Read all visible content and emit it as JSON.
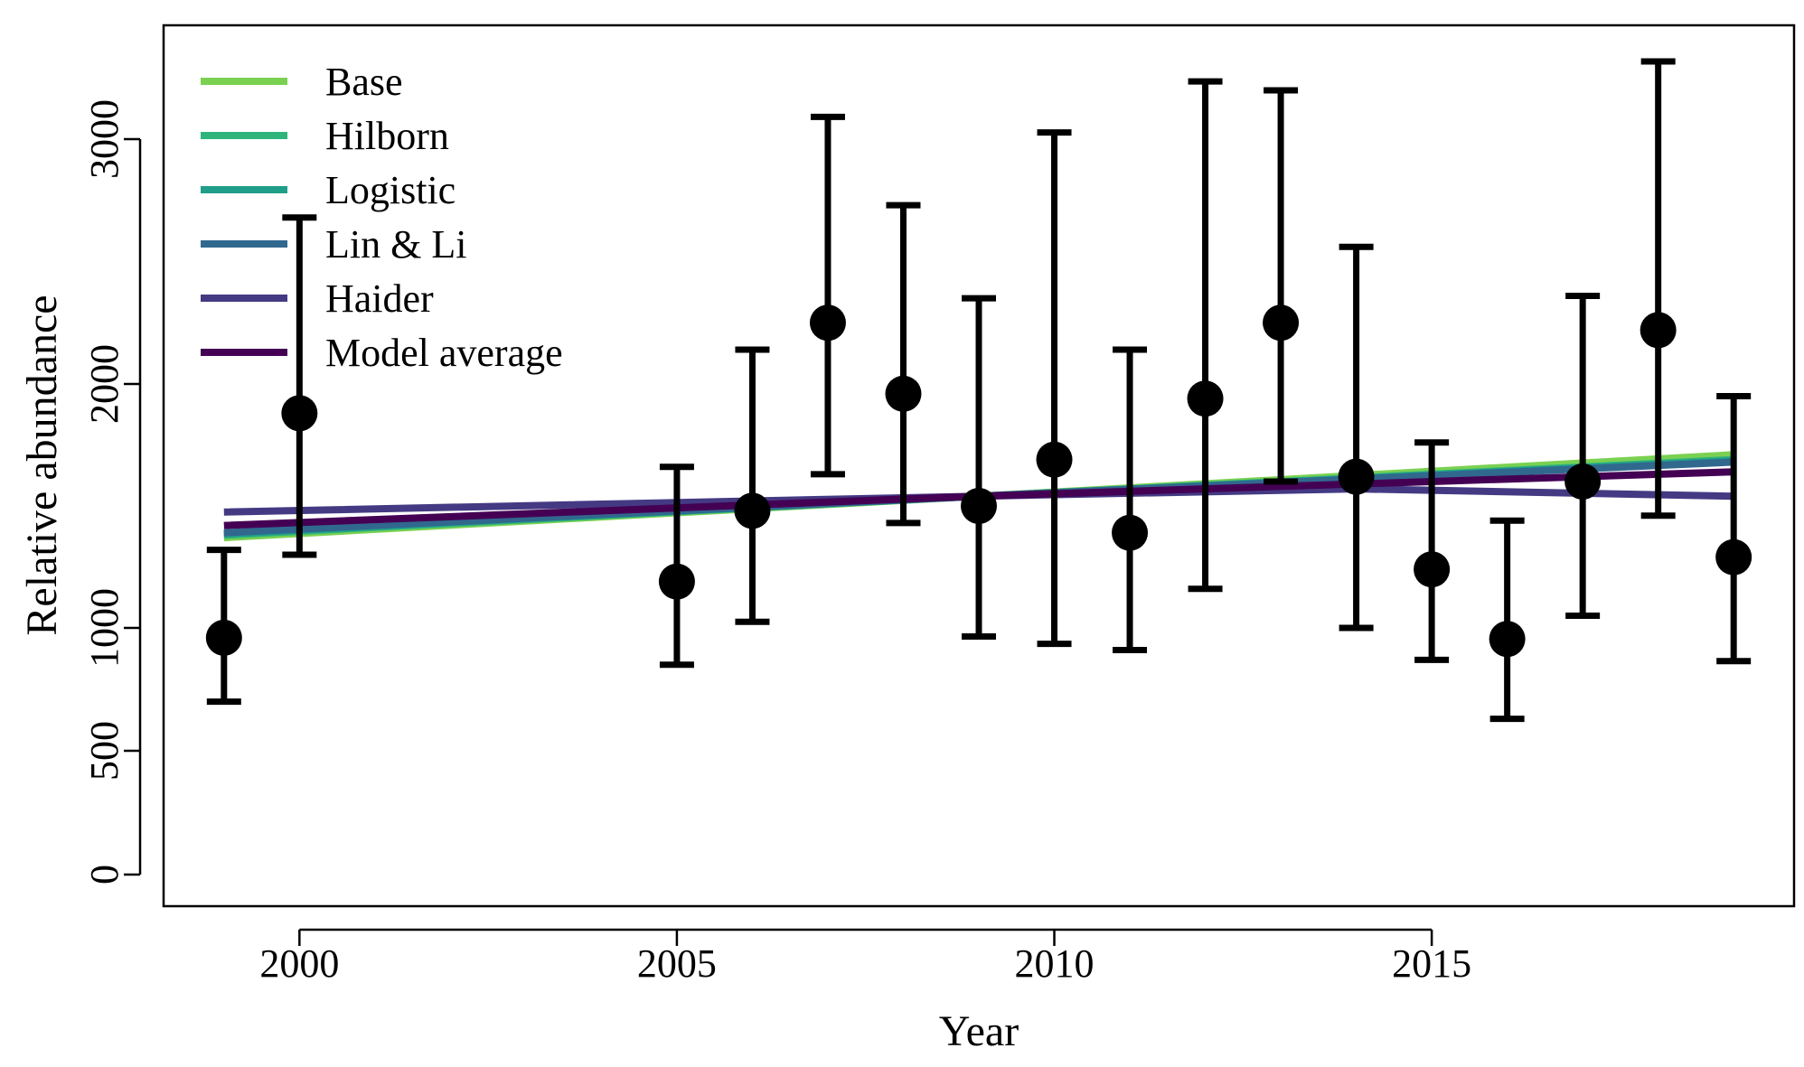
{
  "chart_data": {
    "type": "scatter",
    "xlabel": "Year",
    "ylabel": "Relative abundance",
    "xlim": [
      1998.2,
      2019.8
    ],
    "ylim": [
      -131.7,
      3512.9
    ],
    "x_ticks": [
      {
        "value": 2000,
        "label": "2000"
      },
      {
        "value": 2005,
        "label": "2005"
      },
      {
        "value": 2010,
        "label": "2010"
      },
      {
        "value": 2015,
        "label": "2015"
      }
    ],
    "y_ticks": [
      {
        "value": 0,
        "label": "0"
      },
      {
        "value": 500,
        "label": "500"
      },
      {
        "value": 1000,
        "label": "1000"
      },
      {
        "value": 2000,
        "label": "2000"
      },
      {
        "value": 3000,
        "label": "3000"
      }
    ],
    "y_scale_note": "non-linear axis: 0-1000 linear, then 1000 per equal step to 3000",
    "observations": [
      {
        "year": 1999,
        "value": 960,
        "lower": 700,
        "upper": 1320
      },
      {
        "year": 2000,
        "value": 1880,
        "lower": 1300,
        "upper": 2680
      },
      {
        "year": 2005,
        "value": 1190,
        "lower": 850,
        "upper": 1660
      },
      {
        "year": 2006,
        "value": 1480,
        "lower": 1025,
        "upper": 2140
      },
      {
        "year": 2007,
        "value": 2250,
        "lower": 1630,
        "upper": 3100
      },
      {
        "year": 2008,
        "value": 1960,
        "lower": 1430,
        "upper": 2730
      },
      {
        "year": 2009,
        "value": 1500,
        "lower": 965,
        "upper": 2350
      },
      {
        "year": 2010,
        "value": 1690,
        "lower": 935,
        "upper": 3030
      },
      {
        "year": 2011,
        "value": 1390,
        "lower": 910,
        "upper": 2140
      },
      {
        "year": 2012,
        "value": 1940,
        "lower": 1160,
        "upper": 3260
      },
      {
        "year": 2013,
        "value": 2250,
        "lower": 1600,
        "upper": 3220
      },
      {
        "year": 2014,
        "value": 1620,
        "lower": 1000,
        "upper": 2560
      },
      {
        "year": 2015,
        "value": 1240,
        "lower": 870,
        "upper": 1760
      },
      {
        "year": 2016,
        "value": 955,
        "lower": 630,
        "upper": 1440
      },
      {
        "year": 2017,
        "value": 1600,
        "lower": 1050,
        "upper": 2360
      },
      {
        "year": 2018,
        "value": 2220,
        "lower": 1460,
        "upper": 3350
      },
      {
        "year": 2019,
        "value": 1290,
        "lower": 865,
        "upper": 1950
      }
    ],
    "series": [
      {
        "name": "Base",
        "color": "#7AD151",
        "x": [
          1999,
          2009,
          2019
        ],
        "y": [
          1370,
          1540,
          1710
        ]
      },
      {
        "name": "Hilborn",
        "color": "#2FB47C",
        "x": [
          1999,
          2009,
          2019
        ],
        "y": [
          1380,
          1540,
          1690
        ]
      },
      {
        "name": "Logistic",
        "color": "#1F9E89",
        "x": [
          1999,
          2009,
          2019
        ],
        "y": [
          1385,
          1540,
          1685
        ]
      },
      {
        "name": "Lin & Li",
        "color": "#31688E",
        "x": [
          1999,
          2009,
          2019
        ],
        "y": [
          1390,
          1540,
          1680
        ]
      },
      {
        "name": "Haider",
        "color": "#443A83",
        "x": [
          1999,
          2009,
          2014,
          2019
        ],
        "y": [
          1475,
          1540,
          1570,
          1540
        ]
      },
      {
        "name": "Model average",
        "color": "#440154",
        "x": [
          1999,
          2009,
          2019
        ],
        "y": [
          1420,
          1540,
          1640
        ]
      }
    ],
    "legend_position": "top-left",
    "grid": false
  }
}
